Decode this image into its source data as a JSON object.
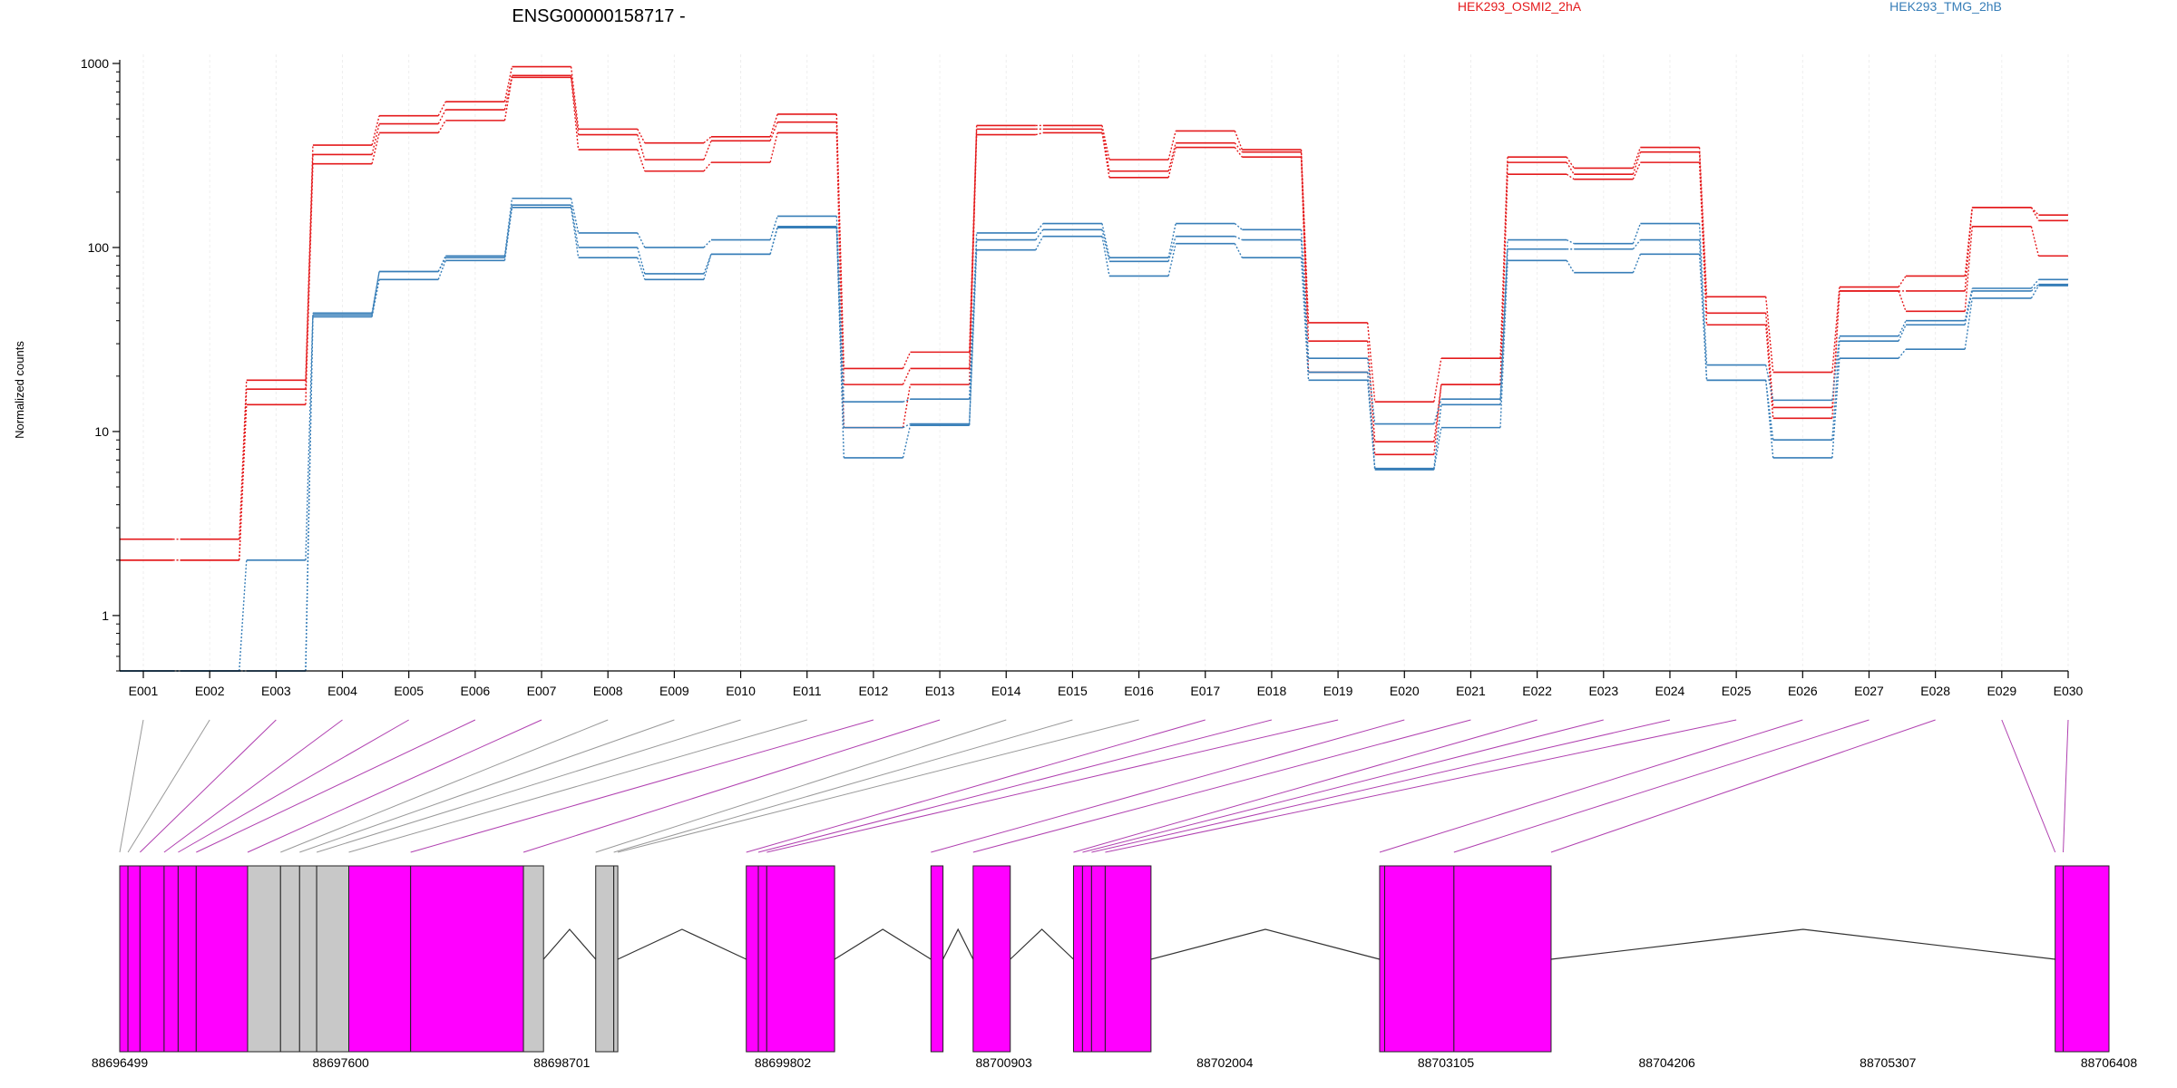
{
  "chart_data": {
    "type": "line",
    "title": "ENSG00000158717 -",
    "ylabel": "Normalized counts",
    "y_scale": "log",
    "y_ticks": [
      1,
      10,
      100,
      1000
    ],
    "y_tick_labels": [
      "1",
      "10",
      "100",
      "1000"
    ],
    "ylim": [
      0.5,
      1000
    ],
    "categories": [
      "E001",
      "E002",
      "E003",
      "E004",
      "E005",
      "E006",
      "E007",
      "E008",
      "E009",
      "E010",
      "E011",
      "E012",
      "E013",
      "E014",
      "E015",
      "E016",
      "E017",
      "E018",
      "E019",
      "E020",
      "E021",
      "E022",
      "E023",
      "E024",
      "E025",
      "E026",
      "E027",
      "E028",
      "E029",
      "E030"
    ],
    "colors": {
      "groupA": "#e41a1c",
      "groupB": "#377eb8",
      "exon_event": "#ff00ff",
      "exon_plain": "#c8c8c8",
      "link_event": "#b040b0",
      "link_plain": "#999999"
    },
    "legend": [
      {
        "name": "HEK293_OSMI2_2hA",
        "color": "#e41a1c"
      },
      {
        "name": "HEK293_TMG_2hB",
        "color": "#377eb8"
      }
    ],
    "series": [
      {
        "group": "HEK293_OSMI2_2hA",
        "color": "#e41a1c",
        "values": [
          2.6,
          2.6,
          19,
          360,
          520,
          620,
          960,
          440,
          370,
          400,
          530,
          22,
          27,
          460,
          460,
          300,
          430,
          340,
          39,
          14.5,
          25,
          310,
          270,
          350,
          54,
          21,
          61,
          70,
          165,
          150
        ]
      },
      {
        "group": "HEK293_OSMI2_2hA",
        "color": "#e41a1c",
        "values": [
          2.0,
          2.0,
          17,
          320,
          470,
          560,
          860,
          410,
          300,
          380,
          480,
          18,
          22,
          440,
          440,
          260,
          370,
          330,
          31,
          8.8,
          18,
          290,
          250,
          330,
          44,
          13.5,
          58,
          58,
          165,
          140
        ]
      },
      {
        "group": "HEK293_OSMI2_2hA",
        "color": "#e41a1c",
        "values": [
          2.0,
          2.0,
          14,
          285,
          420,
          490,
          840,
          340,
          260,
          290,
          420,
          10.5,
          18,
          410,
          420,
          240,
          350,
          310,
          21,
          7.5,
          18,
          250,
          235,
          290,
          38,
          11.8,
          58,
          45,
          130,
          90
        ]
      },
      {
        "group": "HEK293_TMG_2hB",
        "color": "#377eb8",
        "values": [
          0.5,
          0.5,
          2.0,
          44,
          74,
          90,
          185,
          120,
          100,
          110,
          148,
          14.5,
          15,
          120,
          135,
          88,
          135,
          125,
          25,
          11,
          15,
          110,
          105,
          135,
          23,
          14.8,
          33,
          40,
          60,
          67
        ]
      },
      {
        "group": "HEK293_TMG_2hB",
        "color": "#377eb8",
        "values": [
          0.5,
          0.5,
          0.5,
          43,
          74,
          88,
          170,
          100,
          72,
          92,
          130,
          10.5,
          11,
          110,
          125,
          84,
          115,
          110,
          21,
          6.3,
          14,
          98,
          98,
          110,
          19,
          9,
          31,
          38,
          58,
          63
        ]
      },
      {
        "group": "HEK293_TMG_2hB",
        "color": "#377eb8",
        "values": [
          0.5,
          0.5,
          0.5,
          42,
          67,
          85,
          165,
          88,
          67,
          92,
          128,
          7.2,
          10.8,
          97,
          115,
          70,
          105,
          88,
          19,
          6.2,
          10.5,
          85,
          73,
          92,
          19,
          7.2,
          25,
          28,
          53,
          62
        ]
      }
    ],
    "gene_model": {
      "coord_range": [
        88696499,
        88706408
      ],
      "coord_ticks": [
        88696499,
        88697600,
        88698701,
        88699802,
        88700903,
        88702004,
        88703105,
        88704206,
        88705307,
        88706408
      ],
      "coord_tick_labels": [
        "88696499",
        "88697600",
        "88698701",
        "88699802",
        "88700903",
        "88702004",
        "88703105",
        "88704206",
        "88705307",
        "88706408"
      ],
      "exon_blocks": [
        {
          "start": 88696499,
          "end": 88696540,
          "type": "event"
        },
        {
          "start": 88696540,
          "end": 88696600,
          "type": "event"
        },
        {
          "start": 88696600,
          "end": 88696720,
          "type": "event"
        },
        {
          "start": 88696720,
          "end": 88696790,
          "type": "event"
        },
        {
          "start": 88696790,
          "end": 88696880,
          "type": "event"
        },
        {
          "start": 88696880,
          "end": 88697136,
          "type": "event"
        },
        {
          "start": 88697136,
          "end": 88697300,
          "type": "plain"
        },
        {
          "start": 88697300,
          "end": 88697395,
          "type": "plain"
        },
        {
          "start": 88697395,
          "end": 88697480,
          "type": "plain"
        },
        {
          "start": 88697480,
          "end": 88697640,
          "type": "plain"
        },
        {
          "start": 88697640,
          "end": 88697948,
          "type": "event"
        },
        {
          "start": 88697948,
          "end": 88698510,
          "type": "event"
        },
        {
          "start": 88698510,
          "end": 88698610,
          "type": "plain"
        },
        {
          "start": 88698870,
          "end": 88698960,
          "type": "plain"
        },
        {
          "start": 88698960,
          "end": 88698980,
          "type": "plain"
        },
        {
          "start": 88699620,
          "end": 88699680,
          "type": "event"
        },
        {
          "start": 88699680,
          "end": 88699722,
          "type": "event"
        },
        {
          "start": 88699722,
          "end": 88700060,
          "type": "event"
        },
        {
          "start": 88700540,
          "end": 88700600,
          "type": "event"
        },
        {
          "start": 88700750,
          "end": 88700935,
          "type": "event"
        },
        {
          "start": 88701250,
          "end": 88701295,
          "type": "event"
        },
        {
          "start": 88701295,
          "end": 88701340,
          "type": "event"
        },
        {
          "start": 88701340,
          "end": 88701408,
          "type": "event"
        },
        {
          "start": 88701408,
          "end": 88701636,
          "type": "event"
        },
        {
          "start": 88702775,
          "end": 88702800,
          "type": "event"
        },
        {
          "start": 88702800,
          "end": 88703145,
          "type": "event"
        },
        {
          "start": 88703145,
          "end": 88703629,
          "type": "event"
        },
        {
          "start": 88706140,
          "end": 88706180,
          "type": "event"
        },
        {
          "start": 88706180,
          "end": 88706408,
          "type": "event"
        }
      ],
      "introns": [
        [
          88698610,
          88698870
        ],
        [
          88698980,
          88699620
        ],
        [
          88700060,
          88700540
        ],
        [
          88700600,
          88700750
        ],
        [
          88700935,
          88701250
        ],
        [
          88701636,
          88702775
        ],
        [
          88703629,
          88706140
        ]
      ],
      "exon_links": [
        {
          "bin": "E001",
          "coord": 88696499,
          "type": "plain"
        },
        {
          "bin": "E002",
          "coord": 88696540,
          "type": "plain"
        },
        {
          "bin": "E003",
          "coord": 88696600,
          "type": "event"
        },
        {
          "bin": "E004",
          "coord": 88696720,
          "type": "event"
        },
        {
          "bin": "E005",
          "coord": 88696790,
          "type": "event"
        },
        {
          "bin": "E006",
          "coord": 88696880,
          "type": "event"
        },
        {
          "bin": "E007",
          "coord": 88697136,
          "type": "event"
        },
        {
          "bin": "E008",
          "coord": 88697300,
          "type": "plain"
        },
        {
          "bin": "E009",
          "coord": 88697395,
          "type": "plain"
        },
        {
          "bin": "E010",
          "coord": 88697480,
          "type": "plain"
        },
        {
          "bin": "E011",
          "coord": 88697640,
          "type": "plain"
        },
        {
          "bin": "E012",
          "coord": 88697948,
          "type": "event"
        },
        {
          "bin": "E013",
          "coord": 88698510,
          "type": "event"
        },
        {
          "bin": "E014",
          "coord": 88698870,
          "type": "plain"
        },
        {
          "bin": "E015",
          "coord": 88698960,
          "type": "plain"
        },
        {
          "bin": "E016",
          "coord": 88698980,
          "type": "plain"
        },
        {
          "bin": "E017",
          "coord": 88699620,
          "type": "event"
        },
        {
          "bin": "E018",
          "coord": 88699680,
          "type": "event"
        },
        {
          "bin": "E019",
          "coord": 88699722,
          "type": "event"
        },
        {
          "bin": "E020",
          "coord": 88700540,
          "type": "event"
        },
        {
          "bin": "E021",
          "coord": 88700750,
          "type": "event"
        },
        {
          "bin": "E022",
          "coord": 88701250,
          "type": "event"
        },
        {
          "bin": "E023",
          "coord": 88701295,
          "type": "event"
        },
        {
          "bin": "E024",
          "coord": 88701340,
          "type": "event"
        },
        {
          "bin": "E025",
          "coord": 88701408,
          "type": "event"
        },
        {
          "bin": "E026",
          "coord": 88702775,
          "type": "event"
        },
        {
          "bin": "E027",
          "coord": 88703145,
          "type": "event"
        },
        {
          "bin": "E028",
          "coord": 88703629,
          "type": "event"
        },
        {
          "bin": "E029",
          "coord": 88706140,
          "type": "event"
        },
        {
          "bin": "E030",
          "coord": 88706180,
          "type": "event"
        }
      ]
    }
  }
}
